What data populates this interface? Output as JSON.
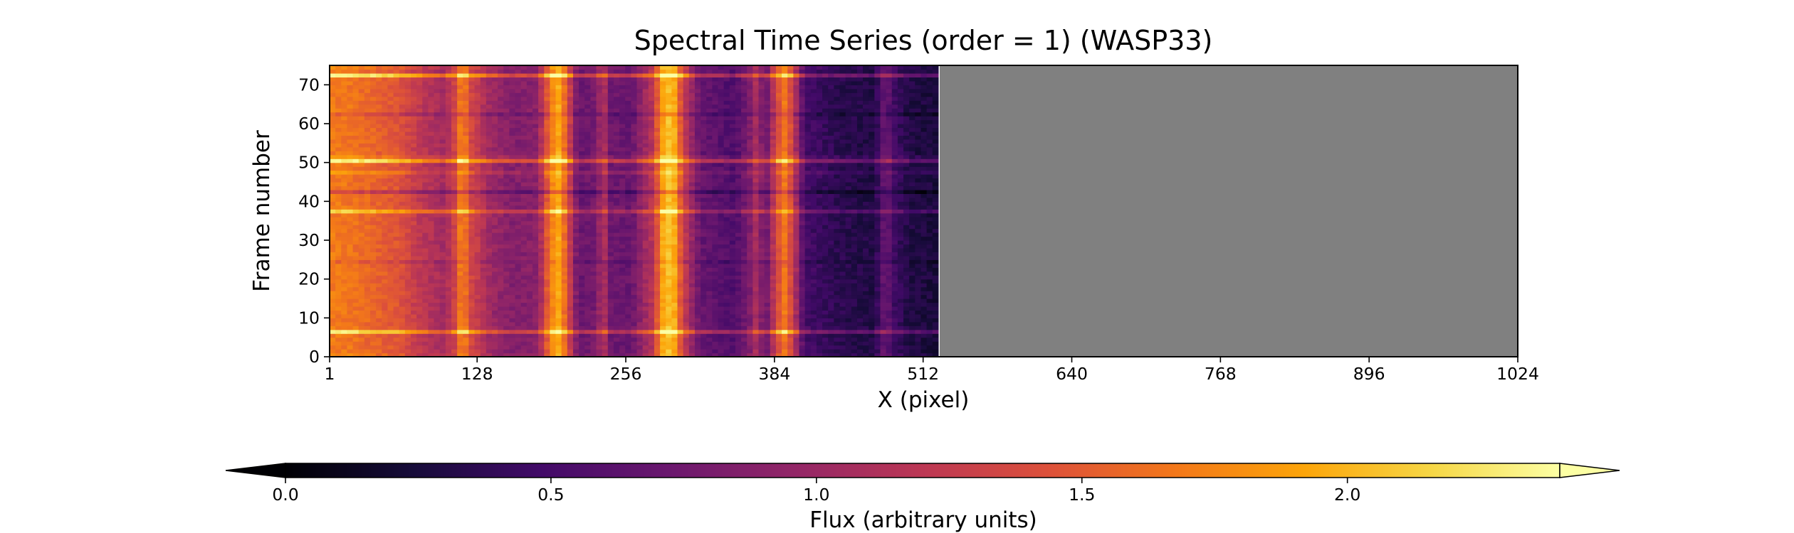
{
  "chart_data": {
    "type": "heatmap",
    "title": "Spectral Time Series (order = 1) (WASP33)",
    "xlabel": "X (pixel)",
    "ylabel": "Frame number",
    "xlim": [
      1,
      1024
    ],
    "ylim": [
      0,
      75
    ],
    "x_ticks": [
      1,
      128,
      256,
      384,
      512,
      640,
      768,
      896,
      1024
    ],
    "x_tick_labels": [
      "1",
      "128",
      "256",
      "384",
      "512",
      "640",
      "768",
      "896",
      "1024"
    ],
    "y_ticks": [
      0,
      10,
      20,
      30,
      40,
      50,
      60,
      70
    ],
    "y_tick_labels": [
      "0",
      "10",
      "20",
      "30",
      "40",
      "50",
      "60",
      "70"
    ],
    "colormap": "inferno",
    "missing_color": "#808080",
    "data_x_range": [
      1,
      525
    ],
    "frame_count": 75,
    "column_profile": [
      [
        1,
        1.7
      ],
      [
        20,
        1.65
      ],
      [
        40,
        1.55
      ],
      [
        60,
        1.45
      ],
      [
        80,
        1.2
      ],
      [
        100,
        1.05
      ],
      [
        110,
        1.35
      ],
      [
        116,
        1.9
      ],
      [
        120,
        1.4
      ],
      [
        140,
        1.0
      ],
      [
        160,
        0.85
      ],
      [
        180,
        0.9
      ],
      [
        190,
        1.6
      ],
      [
        197,
        2.0
      ],
      [
        205,
        1.5
      ],
      [
        215,
        0.7
      ],
      [
        232,
        0.8
      ],
      [
        236,
        1.4
      ],
      [
        240,
        0.75
      ],
      [
        260,
        0.7
      ],
      [
        280,
        1.2
      ],
      [
        290,
        2.1
      ],
      [
        298,
        1.95
      ],
      [
        305,
        1.3
      ],
      [
        320,
        0.7
      ],
      [
        350,
        0.55
      ],
      [
        365,
        0.9
      ],
      [
        370,
        1.2
      ],
      [
        375,
        0.6
      ],
      [
        385,
        1.3
      ],
      [
        392,
        1.7
      ],
      [
        398,
        1.4
      ],
      [
        410,
        0.5
      ],
      [
        440,
        0.35
      ],
      [
        470,
        0.3
      ],
      [
        480,
        0.75
      ],
      [
        485,
        0.5
      ],
      [
        500,
        0.3
      ],
      [
        525,
        0.25
      ]
    ],
    "frame_offsets": [
      [
        0,
        0.1
      ],
      [
        6,
        0.8
      ],
      [
        7,
        0.05
      ],
      [
        24,
        -0.15
      ],
      [
        37,
        0.6
      ],
      [
        38,
        0.05
      ],
      [
        42,
        -0.4
      ],
      [
        47,
        0.25
      ],
      [
        50,
        0.9
      ],
      [
        51,
        0.2
      ],
      [
        62,
        -0.25
      ],
      [
        72,
        0.9
      ],
      [
        74,
        0.1
      ]
    ],
    "colorbar": {
      "label": "Flux (arbitrary units)",
      "range": [
        0.0,
        2.4
      ],
      "extend": "both",
      "ticks": [
        0.0,
        0.5,
        1.0,
        1.5,
        2.0
      ],
      "tick_labels": [
        "0.0",
        "0.5",
        "1.0",
        "1.5",
        "2.0"
      ]
    }
  }
}
